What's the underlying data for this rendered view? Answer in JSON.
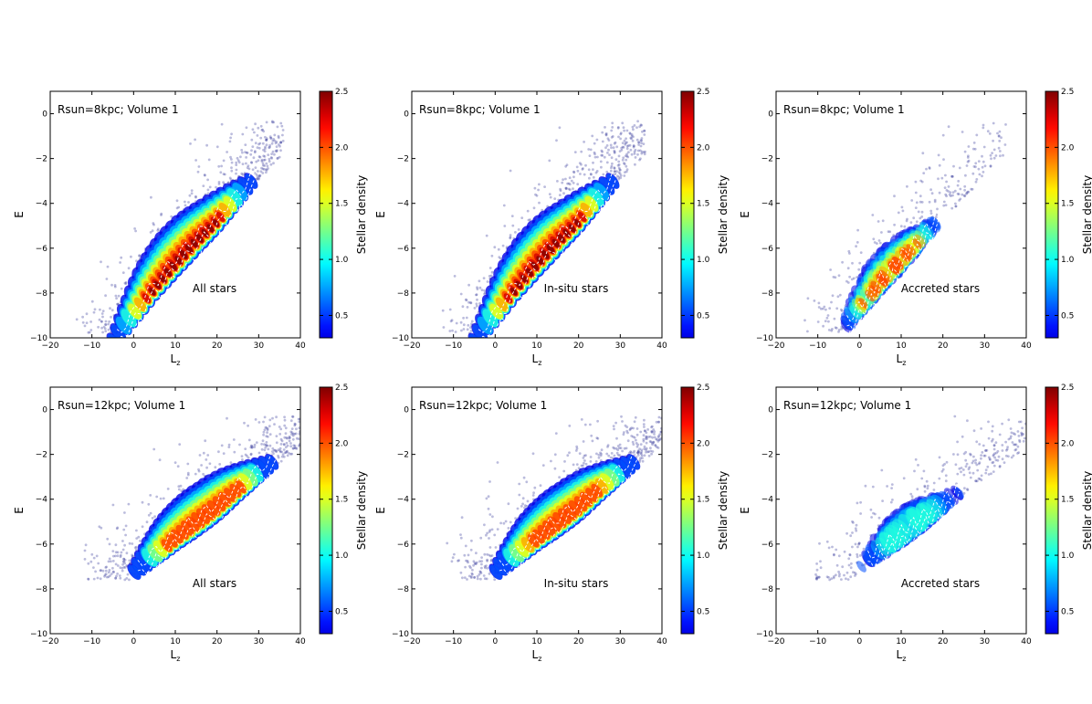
{
  "colorbar": {
    "label": "Stellar density",
    "min": 0.3,
    "max": 2.5,
    "ticks": [
      "0.5",
      "1.0",
      "1.5",
      "2.0",
      "2.5"
    ],
    "colormap": "jet"
  },
  "chart_data": [
    {
      "type": "heatmap",
      "row": 1,
      "col": 1,
      "title": "Rsun=8kpc; Volume 1",
      "label": "All stars",
      "xlabel": "L_z",
      "ylabel": "E",
      "xlim": [
        -20,
        40
      ],
      "ylim": [
        -10,
        1
      ],
      "xticks": [
        "−20",
        "−10",
        "0",
        "10",
        "20",
        "30",
        "40"
      ],
      "yticks": [
        "−10",
        "−8",
        "−6",
        "−4",
        "−2",
        "0"
      ],
      "density_ridge": {
        "lz": [
          0,
          5,
          10,
          15,
          20,
          25
        ],
        "e": [
          -9.3,
          -8.0,
          -6.9,
          -5.9,
          -5.0,
          -4.0
        ]
      },
      "peak_density": 2.5
    },
    {
      "type": "heatmap",
      "row": 1,
      "col": 2,
      "title": "Rsun=8kpc; Volume 1",
      "label": "In-situ stars",
      "xlabel": "L_z",
      "ylabel": "E",
      "xlim": [
        -20,
        40
      ],
      "ylim": [
        -10,
        1
      ],
      "xticks": [
        "−20",
        "−10",
        "0",
        "10",
        "20",
        "30",
        "40"
      ],
      "yticks": [
        "−10",
        "−8",
        "−6",
        "−4",
        "−2",
        "0"
      ],
      "density_ridge": {
        "lz": [
          0,
          5,
          10,
          15,
          20,
          25
        ],
        "e": [
          -9.3,
          -8.0,
          -6.9,
          -5.9,
          -5.0,
          -4.0
        ]
      },
      "peak_density": 2.5
    },
    {
      "type": "heatmap",
      "row": 1,
      "col": 3,
      "title": "Rsun=8kpc; Volume 1",
      "label": "Accreted stars",
      "xlabel": "L_z",
      "ylabel": "E",
      "xlim": [
        -20,
        40
      ],
      "ylim": [
        -10,
        1
      ],
      "xticks": [
        "−20",
        "−10",
        "0",
        "10",
        "20",
        "30",
        "40"
      ],
      "yticks": [
        "−10",
        "−8",
        "−6",
        "−4",
        "−2",
        "0"
      ],
      "density_ridge": {
        "lz": [
          0,
          5,
          10,
          15
        ],
        "e": [
          -9.0,
          -7.8,
          -6.8,
          -5.8
        ]
      },
      "peak_density": 2.2
    },
    {
      "type": "heatmap",
      "row": 2,
      "col": 1,
      "title": "Rsun=12kpc; Volume 1",
      "label": "All stars",
      "xlabel": "L_z",
      "ylabel": "E",
      "xlim": [
        -20,
        40
      ],
      "ylim": [
        -10,
        1
      ],
      "xticks": [
        "−20",
        "−10",
        "0",
        "10",
        "20",
        "30",
        "40"
      ],
      "yticks": [
        "−10",
        "−8",
        "−6",
        "−4",
        "−2",
        "0"
      ],
      "density_ridge": {
        "lz": [
          5,
          10,
          15,
          20,
          25,
          30
        ],
        "e": [
          -6.8,
          -6.0,
          -5.3,
          -4.6,
          -3.8,
          -3.1
        ]
      },
      "peak_density": 2.2
    },
    {
      "type": "heatmap",
      "row": 2,
      "col": 2,
      "title": "Rsun=12kpc; Volume 1",
      "label": "In-situ stars",
      "xlabel": "L_z",
      "ylabel": "E",
      "xlim": [
        -20,
        40
      ],
      "ylim": [
        -10,
        1
      ],
      "xticks": [
        "−20",
        "−10",
        "0",
        "10",
        "20",
        "30",
        "40"
      ],
      "yticks": [
        "−10",
        "−8",
        "−6",
        "−4",
        "−2",
        "0"
      ],
      "density_ridge": {
        "lz": [
          5,
          10,
          15,
          20,
          25,
          30
        ],
        "e": [
          -6.8,
          -6.0,
          -5.3,
          -4.6,
          -3.8,
          -3.1
        ]
      },
      "peak_density": 2.1
    },
    {
      "type": "heatmap",
      "row": 2,
      "col": 3,
      "title": "Rsun=12kpc; Volume 1",
      "label": "Accreted stars",
      "xlabel": "L_z",
      "ylabel": "E",
      "xlim": [
        -20,
        40
      ],
      "ylim": [
        -10,
        1
      ],
      "xticks": [
        "−20",
        "−10",
        "0",
        "10",
        "20",
        "30",
        "40"
      ],
      "yticks": [
        "−10",
        "−8",
        "−6",
        "−4",
        "−2",
        "0"
      ],
      "density_ridge": {
        "lz": [
          5,
          10,
          15,
          20
        ],
        "e": [
          -6.6,
          -5.9,
          -5.2,
          -4.5
        ]
      },
      "peak_density": 1.2
    }
  ]
}
